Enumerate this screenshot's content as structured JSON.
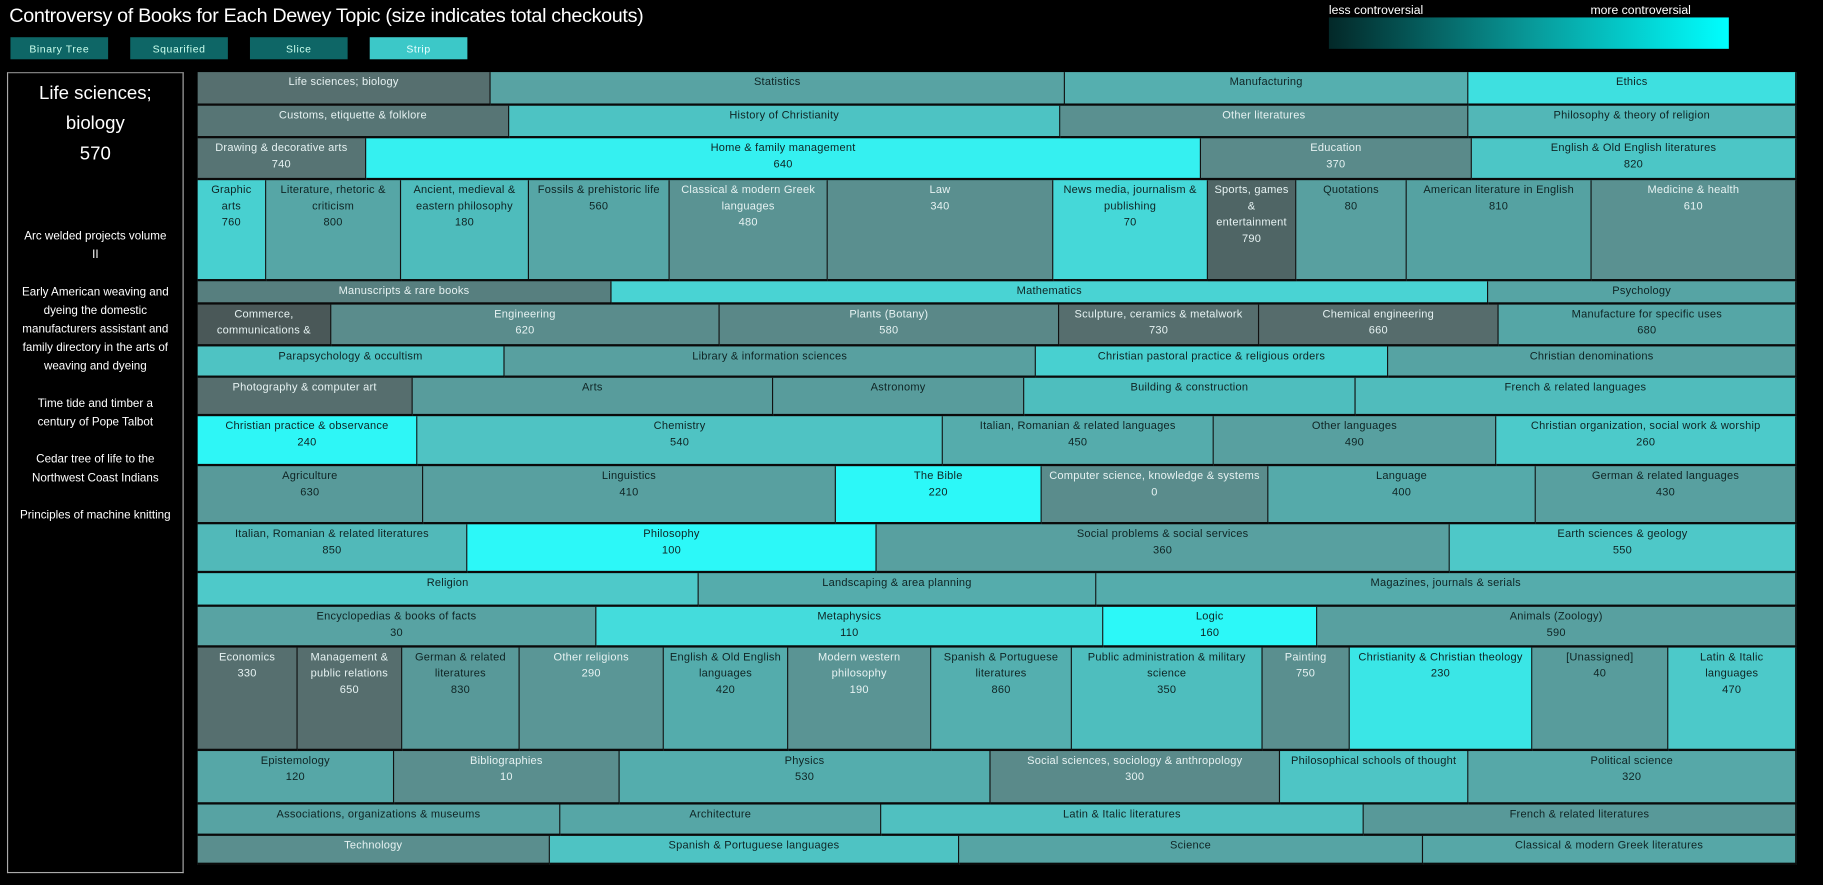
{
  "title": "Controversy of Books for Each Dewey Topic (size indicates total checkouts)",
  "layout_buttons": [
    {
      "label": "Binary Tree",
      "active": false
    },
    {
      "label": "Squarified",
      "active": false
    },
    {
      "label": "Slice",
      "active": false
    },
    {
      "label": "Strip",
      "active": true
    }
  ],
  "legend": {
    "low_label": "less controversial",
    "high_label": "more controversial",
    "low_color": "#032828",
    "high_color": "#00ffff"
  },
  "selected": {
    "name_line1": "Life sciences;",
    "name_line2": "biology",
    "number": "570",
    "books": [
      "Arc welded projects volume II",
      "Early American weaving and dyeing the domestic manufacturers assistant and family directory in the arts of weaving and dyeing",
      "Time tide and timber a century of Pope Talbot",
      "Cedar tree of life to the Northwest Coast Indians",
      "Principles of machine knitting"
    ]
  },
  "chart_data": {
    "type": "treemap",
    "layout": "strip",
    "title": "Controversy of Books for Each Dewey Topic (size indicates total checkouts)",
    "rows": [
      [
        {
          "label": "Life sciences; biology",
          "color": "#566f6f"
        },
        {
          "label": "Statistics",
          "color": "#58a3a3"
        },
        {
          "label": "Manufacturing",
          "color": "#55afaf"
        },
        {
          "label": "Ethics",
          "color": "#3ee0e0"
        }
      ],
      [
        {
          "label": "Customs, etiquette & folklore",
          "color": "#577575"
        },
        {
          "label": "History of Christianity",
          "color": "#4dc3c3"
        },
        {
          "label": "Other literatures",
          "color": "#5a9090"
        },
        {
          "label": "Philosophy & theory of religion",
          "color": "#52b7b7"
        }
      ],
      [
        {
          "label": "Drawing & decorative arts",
          "number": "740",
          "color": "#577474"
        },
        {
          "label": "Home & family management",
          "number": "640",
          "color": "#35f0f0"
        },
        {
          "label": "Education",
          "number": "370",
          "color": "#5a8a8a"
        },
        {
          "label": "English & Old English literatures",
          "number": "820",
          "color": "#4cc6c6"
        }
      ],
      [
        {
          "label": "Graphic arts",
          "number": "760",
          "color": "#48d0d0"
        },
        {
          "label": "Literature, rhetoric & criticism",
          "number": "800",
          "color": "#56a6a6"
        },
        {
          "label": "Ancient, medieval & eastern philosophy",
          "number": "180",
          "color": "#4ebcbc"
        },
        {
          "label": "Fossils & prehistoric life",
          "number": "560",
          "color": "#56a6a6"
        },
        {
          "label": "Classical & modern Greek languages",
          "number": "480",
          "color": "#5a9393"
        },
        {
          "label": "Law",
          "number": "340",
          "color": "#5a8f8f"
        },
        {
          "label": "News media, journalism & publishing",
          "number": "70",
          "color": "#45d8d8"
        },
        {
          "label": "Sports, games & entertainment",
          "number": "790",
          "color": "#4f6565"
        },
        {
          "label": "Quotations",
          "number": "80",
          "color": "#58a0a0"
        },
        {
          "label": "American literature in English",
          "number": "810",
          "color": "#55a2a2"
        },
        {
          "label": "Medicine & health",
          "number": "610",
          "color": "#5a9191"
        }
      ],
      [
        {
          "label": "Manuscripts & rare books",
          "color": "#577f7f"
        },
        {
          "label": "Mathematics",
          "color": "#49d3d3"
        },
        {
          "label": "Psychology",
          "color": "#56a4a4"
        }
      ],
      [
        {
          "label": "Commerce, communications &",
          "color": "#4a5858"
        },
        {
          "label": "Engineering",
          "number": "620",
          "color": "#5a8c8c"
        },
        {
          "label": "Plants (Botany)",
          "number": "580",
          "color": "#5a8888"
        },
        {
          "label": "Sculpture, ceramics & metalwork",
          "number": "730",
          "color": "#566e6e"
        },
        {
          "label": "Chemical engineering",
          "number": "660",
          "color": "#566c6c"
        },
        {
          "label": "Manufacture for specific uses",
          "number": "680",
          "color": "#55a6a6"
        }
      ],
      [
        {
          "label": "Parapsychology & occultism",
          "color": "#4ec3c3"
        },
        {
          "label": "Library & information sciences",
          "color": "#58a0a0"
        },
        {
          "label": "Christian pastoral practice & religious orders",
          "color": "#48d0d0"
        },
        {
          "label": "Christian denominations",
          "color": "#56a3a3"
        }
      ],
      [
        {
          "label": "Photography & computer art",
          "color": "#566e6e"
        },
        {
          "label": "Arts",
          "color": "#589c9c"
        },
        {
          "label": "Astronomy",
          "color": "#589c9c"
        },
        {
          "label": "Building & construction",
          "color": "#4ebebe"
        },
        {
          "label": "French & related languages",
          "color": "#50bcbc"
        }
      ],
      [
        {
          "label": "Christian practice & observance",
          "number": "240",
          "color": "#2ef6f6"
        },
        {
          "label": "Chemistry",
          "number": "540",
          "color": "#4fc3c3"
        },
        {
          "label": "Italian, Romanian & related languages",
          "number": "450",
          "color": "#55acac"
        },
        {
          "label": "Other languages",
          "number": "490",
          "color": "#58a0a0"
        },
        {
          "label": "Christian organization, social work & worship",
          "number": "260",
          "color": "#4ccaca"
        }
      ],
      [
        {
          "label": "Agriculture",
          "number": "630",
          "color": "#589a9a"
        },
        {
          "label": "Linguistics",
          "number": "410",
          "color": "#58a0a0"
        },
        {
          "label": "The Bible",
          "number": "220",
          "color": "#2cf8f8"
        },
        {
          "label": "Computer science, knowledge & systems",
          "number": "0",
          "color": "#5a8c8c"
        },
        {
          "label": "Language",
          "number": "400",
          "color": "#55aaaa"
        },
        {
          "label": "German & related languages",
          "number": "430",
          "color": "#58a0a0"
        }
      ],
      [
        {
          "label": "Italian, Romanian & related literatures",
          "number": "850",
          "color": "#51b9b9"
        },
        {
          "label": "Philosophy",
          "number": "100",
          "color": "#2cf8f8"
        },
        {
          "label": "Social problems & social services",
          "number": "360",
          "color": "#58a0a0"
        },
        {
          "label": "Earth sciences & geology",
          "number": "550",
          "color": "#4ec8c8"
        }
      ],
      [
        {
          "label": "Religion",
          "color": "#4ec9c9"
        },
        {
          "label": "Landscaping & area planning",
          "color": "#55acac"
        },
        {
          "label": "Magazines, journals & serials",
          "color": "#55acac"
        }
      ],
      [
        {
          "label": "Encyclopedias & books of facts",
          "number": "30",
          "color": "#58a3a3"
        },
        {
          "label": "Metaphysics",
          "number": "110",
          "color": "#44dcdc"
        },
        {
          "label": "Logic",
          "number": "160",
          "color": "#2cf8f8"
        },
        {
          "label": "Animals (Zoology)",
          "number": "590",
          "color": "#58a0a0"
        }
      ],
      [
        {
          "label": "Economics",
          "number": "330",
          "color": "#566f6f"
        },
        {
          "label": "Management & public relations",
          "number": "650",
          "color": "#566e6e"
        },
        {
          "label": "German & related literatures",
          "number": "830",
          "color": "#589999"
        },
        {
          "label": "Other religions",
          "number": "290",
          "color": "#5a9696"
        },
        {
          "label": "English & Old English languages",
          "number": "420",
          "color": "#54acac"
        },
        {
          "label": "Modern western philosophy",
          "number": "190",
          "color": "#5a9494"
        },
        {
          "label": "Spanish & Portuguese literatures",
          "number": "860",
          "color": "#54afaf"
        },
        {
          "label": "Public administration & military science",
          "number": "350",
          "color": "#4ebebe"
        },
        {
          "label": "Painting",
          "number": "750",
          "color": "#5a8f8f"
        },
        {
          "label": "Christianity & Christian theology",
          "number": "230",
          "color": "#3ae6e6"
        },
        {
          "label": "[Unassigned]",
          "number": "40",
          "color": "#589c9c"
        },
        {
          "label": "Latin & Italic languages",
          "number": "470",
          "color": "#4cc9c9"
        }
      ],
      [
        {
          "label": "Epistemology",
          "number": "120",
          "color": "#56a7a7"
        },
        {
          "label": "Bibliographies",
          "number": "10",
          "color": "#5a8e8e"
        },
        {
          "label": "Physics",
          "number": "530",
          "color": "#54adad"
        },
        {
          "label": "Social sciences, sociology & anthropology",
          "number": "300",
          "color": "#5a8a8a"
        },
        {
          "label": "Philosophical schools of thought",
          "color": "#4ec5c5"
        },
        {
          "label": "Political science",
          "number": "320",
          "color": "#56a8a8"
        }
      ],
      [
        {
          "label": "Associations, organizations & museums",
          "color": "#57a3a3"
        },
        {
          "label": "Architecture",
          "color": "#56a6a6"
        },
        {
          "label": "Latin & Italic literatures",
          "color": "#50c0c0"
        },
        {
          "label": "French & related literatures",
          "color": "#589999"
        }
      ],
      [
        {
          "label": "Technology",
          "color": "#5a8e8e"
        },
        {
          "label": "Spanish & Portuguese languages",
          "color": "#4ec3c3"
        },
        {
          "label": "Science",
          "color": "#56a4a4"
        },
        {
          "label": "Classical & modern Greek literatures",
          "color": "#56a7a7"
        }
      ]
    ]
  }
}
